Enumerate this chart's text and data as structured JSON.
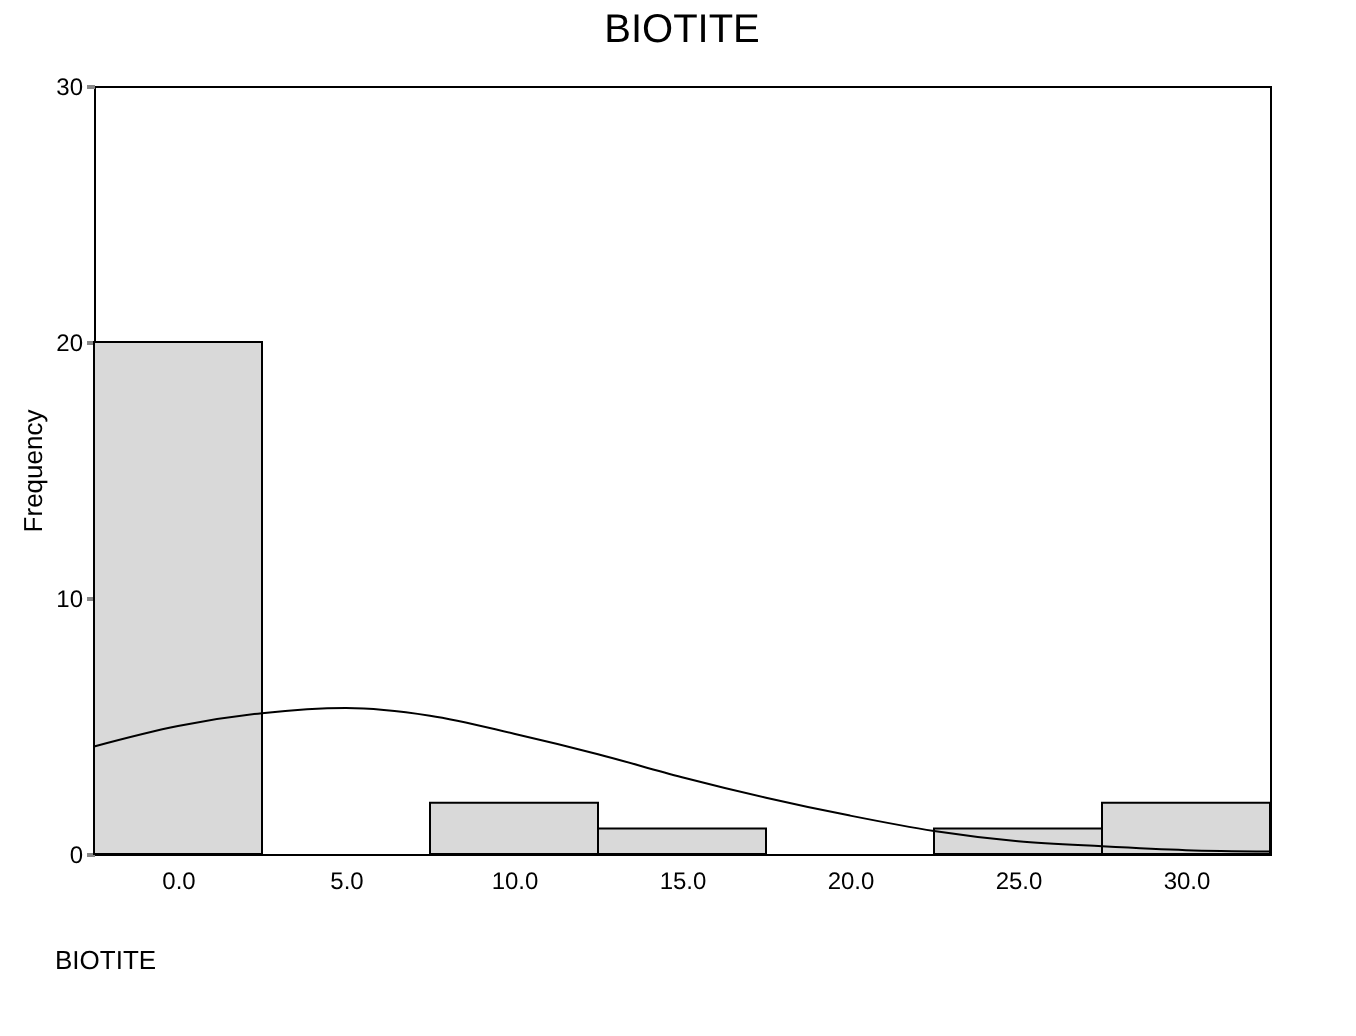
{
  "chart_data": {
    "type": "histogram",
    "title": "BIOTITE",
    "xlabel": "BIOTITE",
    "ylabel": "Frequency",
    "bins": [
      -2.5,
      2.5,
      7.5,
      12.5,
      17.5,
      22.5,
      27.5,
      32.5
    ],
    "values": [
      20,
      0,
      2,
      1,
      0,
      1,
      2
    ],
    "color": "#d9d9d9",
    "series": [
      {
        "type": "line",
        "color": "#000000",
        "x": [
          -2.5,
          0,
          2.5,
          5,
          7.5,
          10,
          12.5,
          15,
          17.5,
          20,
          22.5,
          25,
          27.5,
          30,
          32.5
        ],
        "values": [
          4.2,
          5.0,
          5.5,
          5.7,
          5.4,
          4.7,
          3.9,
          3.0,
          2.2,
          1.5,
          0.9,
          0.5,
          0.3,
          0.15,
          0.1
        ]
      }
    ],
    "xlim": [
      -2.5,
      32.5
    ],
    "xticks": [
      {
        "value": 0,
        "label": "0.0"
      },
      {
        "value": 5,
        "label": "5.0"
      },
      {
        "value": 10,
        "label": "10.0"
      },
      {
        "value": 15,
        "label": "15.0"
      },
      {
        "value": 20,
        "label": "20.0"
      },
      {
        "value": 25,
        "label": "25.0"
      },
      {
        "value": 30,
        "label": "30.0"
      }
    ],
    "ylim": [
      0,
      30
    ],
    "yticks": [
      0,
      10,
      20,
      30
    ],
    "grid": false
  }
}
